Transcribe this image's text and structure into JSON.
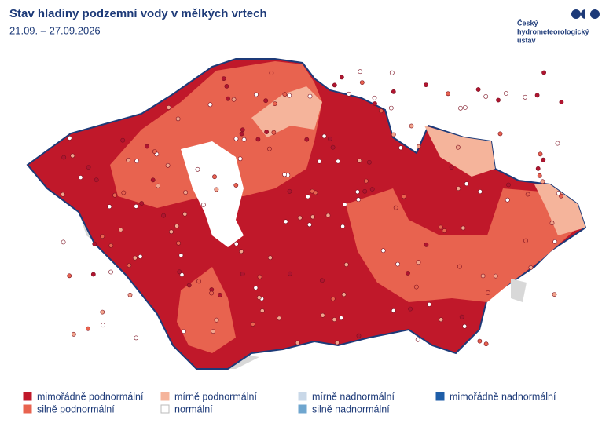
{
  "header": {
    "title": "Stav hladiny podzemní vody v mělkých vrtech",
    "subtitle": "21.09. – 27.09.2026"
  },
  "logo": {
    "lines": [
      "Český",
      "hydrometeorologický",
      "ústav"
    ]
  },
  "legend": {
    "items": [
      {
        "label": "mimořádně podnormální",
        "color": "#c0182a"
      },
      {
        "label": "silně podnormální",
        "color": "#e8634f"
      },
      {
        "label": "mírně podnormální",
        "color": "#f5b49b"
      },
      {
        "label": "normální",
        "color": "#ffffff"
      },
      {
        "label": "mírně nadnormální",
        "color": "#c9d8e8"
      },
      {
        "label": "silně nadnormální",
        "color": "#6fa6cf"
      },
      {
        "label": "mimořádně nadnormální",
        "color": "#1f5ea8"
      }
    ]
  }
}
